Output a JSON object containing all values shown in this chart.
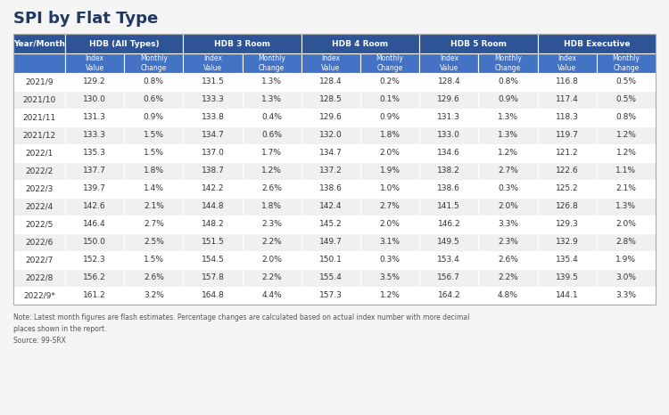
{
  "title": "SPI by Flat Type",
  "groups": [
    "HDB (All Types)",
    "HDB 3 Room",
    "HDB 4 Room",
    "HDB 5 Room",
    "HDB Executive"
  ],
  "sub_headers": [
    "Index\nValue",
    "Monthly\nChange",
    "Index\nValue",
    "Monthly\nChange",
    "Index\nValue",
    "Monthly\nChange",
    "Index\nValue",
    "Monthly\nChange",
    "Index\nValue",
    "Monthly\nChange"
  ],
  "rows": [
    [
      "2021/9",
      "129.2",
      "0.8%",
      "131.5",
      "1.3%",
      "128.4",
      "0.2%",
      "128.4",
      "0.8%",
      "116.8",
      "0.5%"
    ],
    [
      "2021/10",
      "130.0",
      "0.6%",
      "133.3",
      "1.3%",
      "128.5",
      "0.1%",
      "129.6",
      "0.9%",
      "117.4",
      "0.5%"
    ],
    [
      "2021/11",
      "131.3",
      "0.9%",
      "133.8",
      "0.4%",
      "129.6",
      "0.9%",
      "131.3",
      "1.3%",
      "118.3",
      "0.8%"
    ],
    [
      "2021/12",
      "133.3",
      "1.5%",
      "134.7",
      "0.6%",
      "132.0",
      "1.8%",
      "133.0",
      "1.3%",
      "119.7",
      "1.2%"
    ],
    [
      "2022/1",
      "135.3",
      "1.5%",
      "137.0",
      "1.7%",
      "134.7",
      "2.0%",
      "134.6",
      "1.2%",
      "121.2",
      "1.2%"
    ],
    [
      "2022/2",
      "137.7",
      "1.8%",
      "138.7",
      "1.2%",
      "137.2",
      "1.9%",
      "138.2",
      "2.7%",
      "122.6",
      "1.1%"
    ],
    [
      "2022/3",
      "139.7",
      "1.4%",
      "142.2",
      "2.6%",
      "138.6",
      "1.0%",
      "138.6",
      "0.3%",
      "125.2",
      "2.1%"
    ],
    [
      "2022/4",
      "142.6",
      "2.1%",
      "144.8",
      "1.8%",
      "142.4",
      "2.7%",
      "141.5",
      "2.0%",
      "126.8",
      "1.3%"
    ],
    [
      "2022/5",
      "146.4",
      "2.7%",
      "148.2",
      "2.3%",
      "145.2",
      "2.0%",
      "146.2",
      "3.3%",
      "129.3",
      "2.0%"
    ],
    [
      "2022/6",
      "150.0",
      "2.5%",
      "151.5",
      "2.2%",
      "149.7",
      "3.1%",
      "149.5",
      "2.3%",
      "132.9",
      "2.8%"
    ],
    [
      "2022/7",
      "152.3",
      "1.5%",
      "154.5",
      "2.0%",
      "150.1",
      "0.3%",
      "153.4",
      "2.6%",
      "135.4",
      "1.9%"
    ],
    [
      "2022/8",
      "156.2",
      "2.6%",
      "157.8",
      "2.2%",
      "155.4",
      "3.5%",
      "156.7",
      "2.2%",
      "139.5",
      "3.0%"
    ],
    [
      "2022/9*",
      "161.2",
      "3.2%",
      "164.8",
      "4.4%",
      "157.3",
      "1.2%",
      "164.2",
      "4.8%",
      "144.1",
      "3.3%"
    ]
  ],
  "note": "Note: Latest month figures are flash estimates. Percentage changes are calculated based on actual index number with more decimal\nplaces shown in the report.",
  "source": "Source: 99-SRX",
  "header_bg": "#2E5496",
  "header_text": "#FFFFFF",
  "subheader_bg": "#4472C4",
  "subheader_text": "#FFFFFF",
  "row_even_bg": "#FFFFFF",
  "row_odd_bg": "#F0F0F0",
  "row_text": "#333333",
  "title_color": "#1F3864",
  "background_color": "#F5F5F5"
}
